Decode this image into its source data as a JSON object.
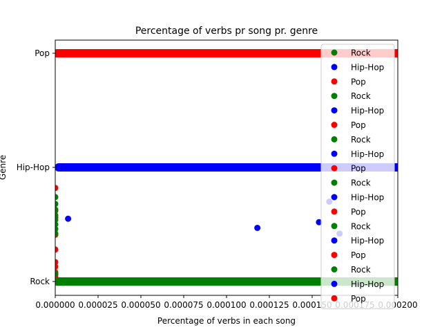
{
  "chart_data": {
    "type": "scatter",
    "title": "Percentage of verbs pr song pr. genre",
    "xlabel": "Percentage of verbs in each song",
    "ylabel": "Genre",
    "xlim": [
      0,
      0.0002
    ],
    "x_ticks": [
      "0.000000",
      "0.000025",
      "0.000050",
      "0.000075",
      "0.000100",
      "0.000125",
      "0.000150",
      "0.000175",
      "0.000200"
    ],
    "y_ticks": [
      "Rock",
      "Hip-Hop",
      "Pop"
    ],
    "legend_position": "right",
    "legend": [
      "Rock",
      "Hip-Hop",
      "Pop",
      "Rock",
      "Hip-Hop",
      "Pop",
      "Rock",
      "Hip-Hop",
      "Pop",
      "Rock",
      "Hip-Hop",
      "Pop",
      "Rock",
      "Hip-Hop",
      "Pop",
      "Rock",
      "Hip-Hop",
      "Pop"
    ],
    "colors": {
      "Rock": "#008000",
      "Hip-Hop": "#0000ff",
      "Pop": "#ff0000"
    },
    "series": [
      {
        "name": "Pop",
        "color": "#ff0000",
        "band": [
          1e-06,
          0.0002
        ],
        "y": 2,
        "points": [
          [
            0.0,
            1.99
          ],
          [
            0.0,
            0.82
          ],
          [
            0.0,
            0.62
          ],
          [
            0.0,
            0.56
          ],
          [
            0.0,
            0.41
          ],
          [
            0.0,
            0.28
          ],
          [
            0.0,
            0.17
          ],
          [
            0.0,
            0.13
          ],
          [
            0.0,
            0.08
          ],
          [
            0.0,
            0.06
          ],
          [
            0.0,
            0.04
          ]
        ]
      },
      {
        "name": "Hip-Hop",
        "color": "#0000ff",
        "band": [
          2e-06,
          0.0002
        ],
        "y": 1,
        "points": [
          [
            7.5e-06,
            0.55
          ],
          [
            0.000118,
            0.47
          ],
          [
            0.000154,
            0.52
          ],
          [
            0.00016,
            0.7
          ],
          [
            0.000166,
            0.42
          ],
          [
            0.000199,
            1.0
          ]
        ]
      },
      {
        "name": "Rock",
        "color": "#008000",
        "band": [
          1e-06,
          0.0002
        ],
        "y": 0,
        "points": [
          [
            0.0,
            0.74
          ],
          [
            0.0,
            0.68
          ],
          [
            0.0,
            0.63
          ],
          [
            0.0,
            0.58
          ],
          [
            0.0,
            0.54
          ],
          [
            0.0,
            0.5
          ],
          [
            0.0,
            0.46
          ],
          [
            0.0,
            0.42
          ],
          [
            0.0,
            0.07
          ]
        ]
      }
    ]
  }
}
